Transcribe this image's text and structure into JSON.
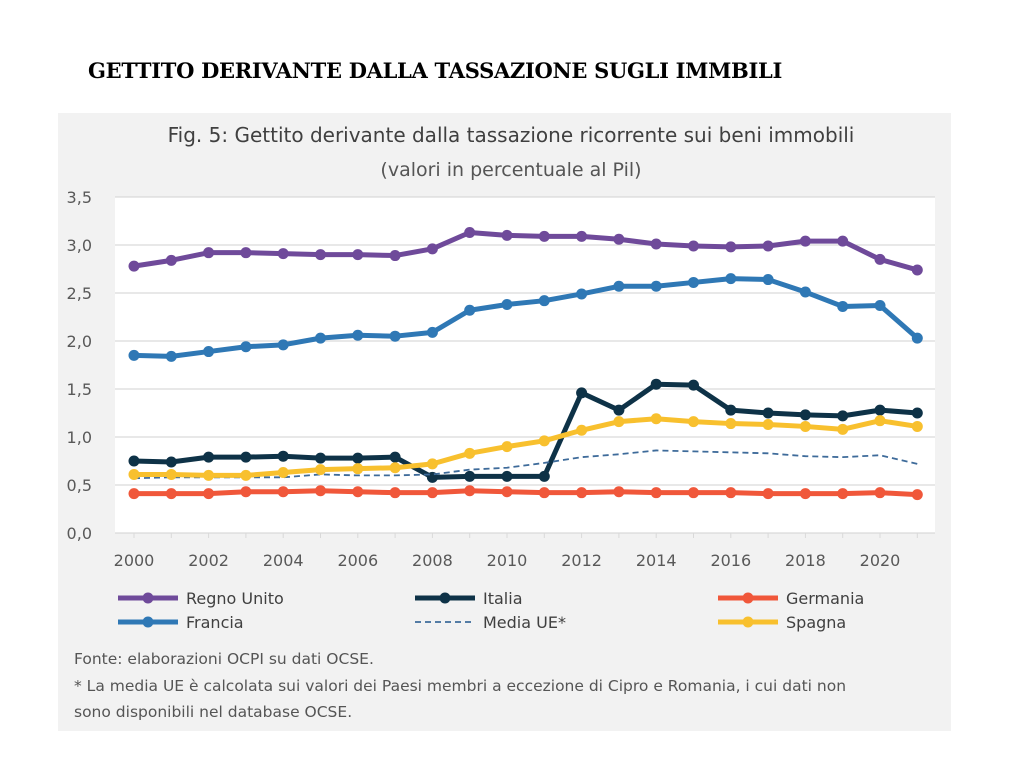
{
  "heading": "GETTITO DERIVANTE DALLA TASSAZIONE SUGLI IMMBILI",
  "chart_data": {
    "type": "line",
    "title": "Fig. 5: Gettito derivante dalla tassazione ricorrente sui beni immobili",
    "subtitle": "(valori in percentuale al Pil)",
    "xlabel": "",
    "ylabel": "",
    "x": [
      2000,
      2001,
      2002,
      2003,
      2004,
      2005,
      2006,
      2007,
      2008,
      2009,
      2010,
      2011,
      2012,
      2013,
      2014,
      2015,
      2016,
      2017,
      2018,
      2019,
      2020,
      2021
    ],
    "x_tick_labels": [
      "2000",
      "2002",
      "2004",
      "2006",
      "2008",
      "2010",
      "2012",
      "2014",
      "2016",
      "2018",
      "2020"
    ],
    "y_tick_labels": [
      "0,0",
      "0,5",
      "1,0",
      "1,5",
      "2,0",
      "2,5",
      "3,0",
      "3,5"
    ],
    "ylim": [
      0,
      3.5
    ],
    "grid": true,
    "legend": "bottom",
    "series": [
      {
        "name": "Regno Unito",
        "color": "#6f4a9a",
        "style": "solid-marker",
        "values": [
          2.78,
          2.84,
          2.92,
          2.92,
          2.91,
          2.9,
          2.9,
          2.89,
          2.96,
          3.13,
          3.1,
          3.09,
          3.09,
          3.06,
          3.01,
          2.99,
          2.98,
          2.99,
          3.04,
          3.04,
          2.85,
          2.74
        ]
      },
      {
        "name": "Italia",
        "color": "#0e3247",
        "style": "solid-marker",
        "values": [
          0.75,
          0.74,
          0.79,
          0.79,
          0.8,
          0.78,
          0.78,
          0.79,
          0.58,
          0.59,
          0.59,
          0.59,
          1.46,
          1.28,
          1.55,
          1.54,
          1.28,
          1.25,
          1.23,
          1.22,
          1.28,
          1.25
        ]
      },
      {
        "name": "Germania",
        "color": "#f0573a",
        "style": "solid-marker",
        "values": [
          0.41,
          0.41,
          0.41,
          0.43,
          0.43,
          0.44,
          0.43,
          0.42,
          0.42,
          0.44,
          0.43,
          0.42,
          0.42,
          0.43,
          0.42,
          0.42,
          0.42,
          0.41,
          0.41,
          0.41,
          0.42,
          0.4
        ]
      },
      {
        "name": "Francia",
        "color": "#2f78b5",
        "style": "solid-marker",
        "values": [
          1.85,
          1.84,
          1.89,
          1.94,
          1.96,
          2.03,
          2.06,
          2.05,
          2.09,
          2.32,
          2.38,
          2.42,
          2.49,
          2.57,
          2.57,
          2.61,
          2.65,
          2.64,
          2.51,
          2.36,
          2.37,
          2.03
        ]
      },
      {
        "name": "Media UE*",
        "color": "#3e6b9a",
        "style": "dashed",
        "values": [
          0.57,
          0.58,
          0.58,
          0.58,
          0.58,
          0.61,
          0.6,
          0.6,
          0.61,
          0.66,
          0.68,
          0.73,
          0.79,
          0.82,
          0.86,
          0.85,
          0.84,
          0.83,
          0.8,
          0.79,
          0.81,
          0.72
        ]
      },
      {
        "name": "Spagna",
        "color": "#f8c02e",
        "style": "solid-marker",
        "values": [
          0.61,
          0.61,
          0.6,
          0.6,
          0.63,
          0.66,
          0.67,
          0.68,
          0.72,
          0.83,
          0.9,
          0.96,
          1.07,
          1.16,
          1.19,
          1.16,
          1.14,
          1.13,
          1.11,
          1.08,
          1.17,
          1.11
        ]
      }
    ]
  },
  "footnotes": [
    "Fonte: elaborazioni OCPI su dati OCSE.",
    "* La media UE è calcolata sui valori dei Paesi membri a eccezione di Cipro e Romania, i cui dati non",
    "sono disponibili nel database OCSE."
  ]
}
